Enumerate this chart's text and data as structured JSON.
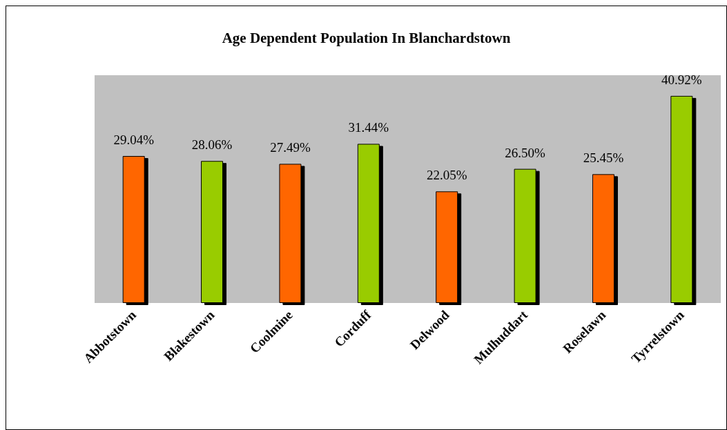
{
  "chart_data": {
    "type": "bar",
    "title": "Age Dependent Population In Blanchardstown",
    "categories": [
      "Abbotstown",
      "Blakestown",
      "Coolmine",
      "Corduff",
      "Delwood",
      "Mulhuddart",
      "Roselawn",
      "Tyrrelstown"
    ],
    "values": [
      29.04,
      28.06,
      27.49,
      31.44,
      22.05,
      26.5,
      25.45,
      40.92
    ],
    "value_labels": [
      "29.04%",
      "28.06%",
      "27.49%",
      "31.44%",
      "22.05%",
      "26.50%",
      "25.45%",
      "40.92%"
    ],
    "colors": [
      "#ff6600",
      "#99cc00",
      "#ff6600",
      "#99cc00",
      "#ff6600",
      "#99cc00",
      "#ff6600",
      "#99cc00"
    ],
    "ylim": [
      0,
      45
    ]
  }
}
